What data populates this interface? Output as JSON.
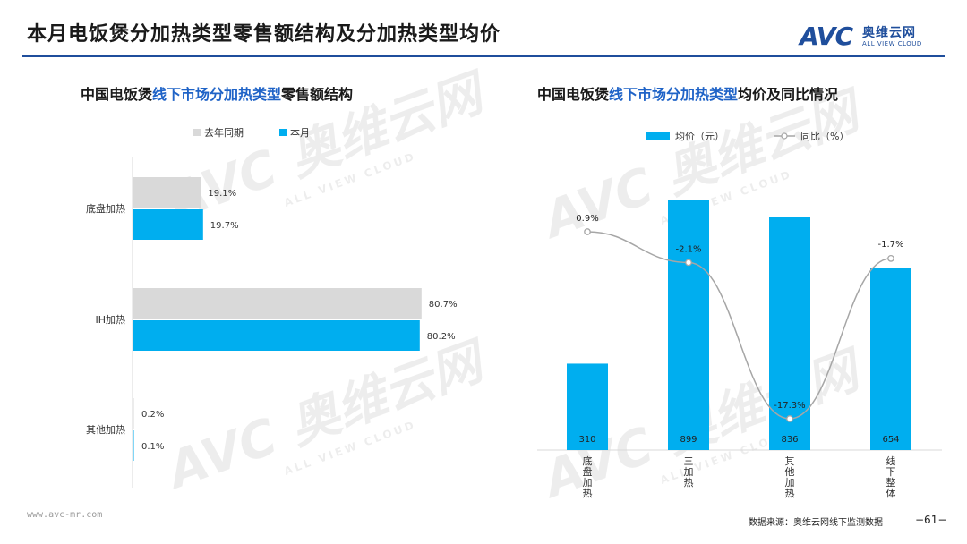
{
  "page": {
    "title": "本月电饭煲分加热类型零售额结构及分加热类型均价",
    "footer_url": "www.avc-mr.com",
    "source": "数据来源：奥维云网线下监测数据",
    "page_number": "−61−"
  },
  "logo": {
    "mark": "AVC",
    "cn": "奥维云网",
    "en": "ALL VIEW CLOUD"
  },
  "watermark": {
    "mark": "AVC 奥维云网",
    "en": "ALL VIEW CLOUD"
  },
  "left_chart": {
    "title_prefix": "中国电饭煲",
    "title_highlight": "线下市场分加热类型",
    "title_suffix": "零售额结构"
  },
  "right_chart": {
    "title_prefix": "中国电饭煲",
    "title_highlight": "线下市场分加热类型",
    "title_suffix": "均价及同比情况"
  },
  "colors": {
    "last_year": "#d9d9d9",
    "this_month": "#00aeef",
    "line": "#a6a6a6",
    "accent": "#1f4e9c",
    "highlight": "#1f63c7"
  },
  "chart_data": [
    {
      "type": "bar",
      "orientation": "horizontal",
      "categories": [
        "底盘加热",
        "IH加热",
        "其他加热"
      ],
      "series": [
        {
          "name": "去年同期",
          "values": [
            19.1,
            80.7,
            0.2
          ],
          "labels": [
            "19.1%",
            "80.7%",
            "0.2%"
          ]
        },
        {
          "name": "本月",
          "values": [
            19.7,
            80.2,
            0.1
          ],
          "labels": [
            "19.7%",
            "80.2%",
            "0.1%"
          ]
        }
      ],
      "legend": "top"
    },
    {
      "type": "bar+line",
      "categories": [
        "底盘加热",
        "三加热",
        "其他加热",
        "线下整体"
      ],
      "bar_series": {
        "name": "均价（元）",
        "values": [
          310,
          899,
          836,
          654
        ],
        "labels": [
          "310",
          "899",
          "836",
          "654"
        ]
      },
      "line_series": {
        "name": "同比（%）",
        "values": [
          0.9,
          -2.1,
          -17.3,
          -1.7
        ],
        "labels": [
          "0.9%",
          "-2.1%",
          "-17.3%",
          "-1.7%"
        ]
      },
      "legend": "top"
    }
  ]
}
